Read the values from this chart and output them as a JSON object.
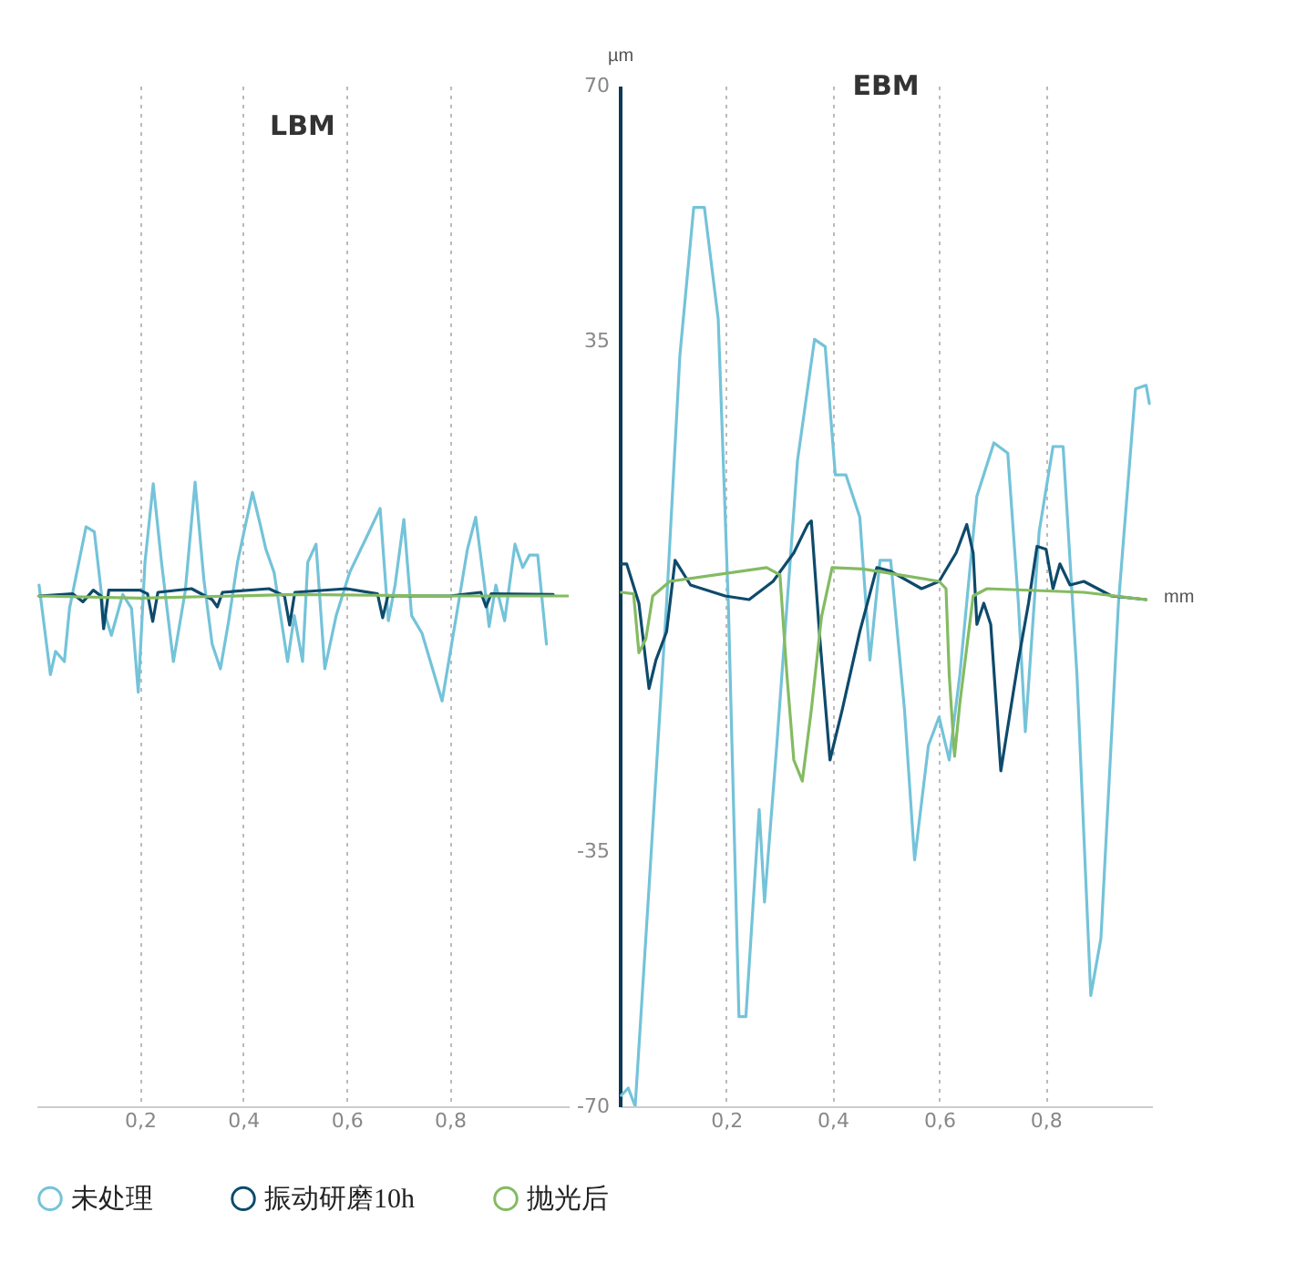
{
  "chart_data": [
    {
      "type": "line",
      "title": "LBM",
      "xlim": [
        0,
        1.03
      ],
      "xticks": [
        {
          "value": 0.2,
          "label": "0,2"
        },
        {
          "value": 0.4,
          "label": "0,4"
        },
        {
          "value": 0.6,
          "label": "0,6"
        },
        {
          "value": 0.8,
          "label": "0,8"
        }
      ],
      "ylim": [
        -70,
        70
      ],
      "grid": "x",
      "tick_labels": "x",
      "legend": "bottom",
      "series": [
        {
          "name": "未处理",
          "color": "#74c3d9",
          "x": [
            0.005,
            0.027,
            0.037,
            0.054,
            0.064,
            0.096,
            0.112,
            0.129,
            0.145,
            0.167,
            0.184,
            0.197,
            0.21,
            0.226,
            0.242,
            0.265,
            0.288,
            0.307,
            0.324,
            0.34,
            0.356,
            0.372,
            0.389,
            0.418,
            0.434,
            0.444,
            0.46,
            0.486,
            0.499,
            0.515,
            0.525,
            0.541,
            0.558,
            0.58,
            0.606,
            0.639,
            0.665,
            0.681,
            0.694,
            0.711,
            0.726,
            0.746,
            0.785,
            0.811,
            0.834,
            0.85,
            0.867,
            0.876,
            0.889,
            0.906,
            0.926,
            0.941,
            0.954,
            0.97,
            0.987
          ],
          "values": [
            1.5,
            -10.8,
            -7.6,
            -9,
            -1.7,
            9.5,
            8.8,
            -1.7,
            -5.4,
            0.2,
            -1.7,
            -13.2,
            4.6,
            15.4,
            4.6,
            -9,
            0.7,
            15.6,
            2.2,
            -6.6,
            -10,
            -3.4,
            4.6,
            14.2,
            9.5,
            6.4,
            3.2,
            -9,
            -2.7,
            -9,
            4.6,
            7.1,
            -10,
            -2.7,
            3.2,
            8.1,
            12,
            -3.4,
            1.5,
            10.5,
            -2.7,
            -5.1,
            -14.4,
            -3.4,
            6.4,
            10.8,
            1.5,
            -4.2,
            1.5,
            -3.4,
            7.1,
            3.9,
            5.6,
            5.6,
            -6.6
          ]
        },
        {
          "name": "振动研磨10h",
          "color": "#0e4a6b",
          "x": [
            0.005,
            0.07,
            0.09,
            0.11,
            0.125,
            0.13,
            0.14,
            0.2,
            0.215,
            0.225,
            0.235,
            0.3,
            0.34,
            0.35,
            0.36,
            0.45,
            0.48,
            0.49,
            0.5,
            0.6,
            0.66,
            0.67,
            0.68,
            0.8,
            0.86,
            0.87,
            0.88,
            1.0
          ],
          "values": [
            0,
            0.3,
            -0.8,
            0.8,
            0,
            -4.5,
            0.8,
            0.8,
            0.3,
            -3.5,
            0.5,
            1,
            -0.5,
            -1.5,
            0.5,
            1,
            0,
            -4,
            0.5,
            1,
            0.3,
            -3,
            0,
            0,
            0.5,
            -1.5,
            0.3,
            0.2
          ]
        },
        {
          "name": "抛光后",
          "color": "#84bb62",
          "x": [
            0.005,
            0.2,
            0.5,
            0.8,
            1.03
          ],
          "values": [
            0,
            -0.3,
            0.2,
            0,
            0
          ]
        }
      ]
    },
    {
      "type": "line",
      "title": "EBM",
      "xlabel": "mm",
      "ylabel": "µm",
      "xlim": [
        0,
        1.0
      ],
      "xticks": [
        {
          "value": 0.2,
          "label": "0,2"
        },
        {
          "value": 0.4,
          "label": "0,4"
        },
        {
          "value": 0.6,
          "label": "0,6"
        },
        {
          "value": 0.8,
          "label": "0,8"
        }
      ],
      "ylim": [
        -70,
        70
      ],
      "yticks": [
        -70,
        -35,
        35,
        70
      ],
      "grid": "x",
      "legend": "bottom",
      "series": [
        {
          "name": "未处理",
          "color": "#74c3d9",
          "x": [
            0.003,
            0.016,
            0.029,
            0.055,
            0.088,
            0.113,
            0.139,
            0.159,
            0.185,
            0.204,
            0.224,
            0.237,
            0.262,
            0.272,
            0.295,
            0.334,
            0.366,
            0.386,
            0.405,
            0.425,
            0.451,
            0.47,
            0.489,
            0.509,
            0.535,
            0.554,
            0.58,
            0.6,
            0.619,
            0.639,
            0.671,
            0.703,
            0.729,
            0.749,
            0.762,
            0.788,
            0.814,
            0.833,
            0.859,
            0.885,
            0.904,
            0.937,
            0.969,
            0.989,
            0.995
          ],
          "values": [
            -68.5,
            -67.5,
            -70,
            -40,
            -1,
            33,
            53.3,
            53.3,
            38,
            -1,
            -57.7,
            -57.7,
            -29.3,
            -42,
            -20.5,
            18.6,
            35.2,
            34.2,
            16.6,
            16.6,
            10.8,
            -8.8,
            4.9,
            4.9,
            -15.6,
            -36.2,
            -20.5,
            -16.6,
            -22.5,
            -10.8,
            13.7,
            21,
            19.6,
            -1,
            -18.6,
            8.8,
            20.5,
            20.5,
            -10.8,
            -54.8,
            -47,
            -1,
            28.4,
            28.9,
            26.4
          ]
        },
        {
          "name": "振动研磨10h",
          "color": "#0e4a6b",
          "x": [
            0.003,
            0.013,
            0.036,
            0.055,
            0.068,
            0.088,
            0.104,
            0.133,
            0.198,
            0.243,
            0.288,
            0.327,
            0.353,
            0.36,
            0.376,
            0.395,
            0.418,
            0.451,
            0.483,
            0.509,
            0.567,
            0.6,
            0.632,
            0.652,
            0.664,
            0.671,
            0.684,
            0.697,
            0.716,
            0.749,
            0.768,
            0.784,
            0.801,
            0.814,
            0.827,
            0.846,
            0.872,
            0.924,
            0.989
          ],
          "values": [
            4.4,
            4.4,
            -1,
            -12.7,
            -8.8,
            -4.9,
            4.9,
            1.5,
            0,
            -0.5,
            2,
            5.9,
            9.8,
            10.3,
            -5.9,
            -22.5,
            -15.6,
            -4.9,
            3.9,
            3.4,
            1,
            2,
            5.9,
            9.8,
            5.9,
            -3.9,
            -1,
            -3.9,
            -24,
            -8.8,
            -1,
            6.8,
            6.4,
            1,
            4.4,
            1.5,
            2,
            0,
            -0.5
          ]
        },
        {
          "name": "抛光后",
          "color": "#84bb62",
          "x": [
            0.003,
            0.026,
            0.036,
            0.049,
            0.062,
            0.094,
            0.276,
            0.301,
            0.314,
            0.327,
            0.343,
            0.36,
            0.379,
            0.399,
            0.457,
            0.6,
            0.613,
            0.619,
            0.629,
            0.639,
            0.664,
            0.69,
            0.872,
            0.989
          ],
          "values": [
            0.5,
            0.3,
            -7.8,
            -5.9,
            0,
            2,
            3.9,
            2.9,
            -10.8,
            -22.5,
            -25.4,
            -15.6,
            -2.9,
            3.9,
            3.7,
            2,
            1,
            -10.8,
            -22,
            -14.7,
            0,
            1,
            0.5,
            -0.5
          ]
        }
      ]
    }
  ]
}
